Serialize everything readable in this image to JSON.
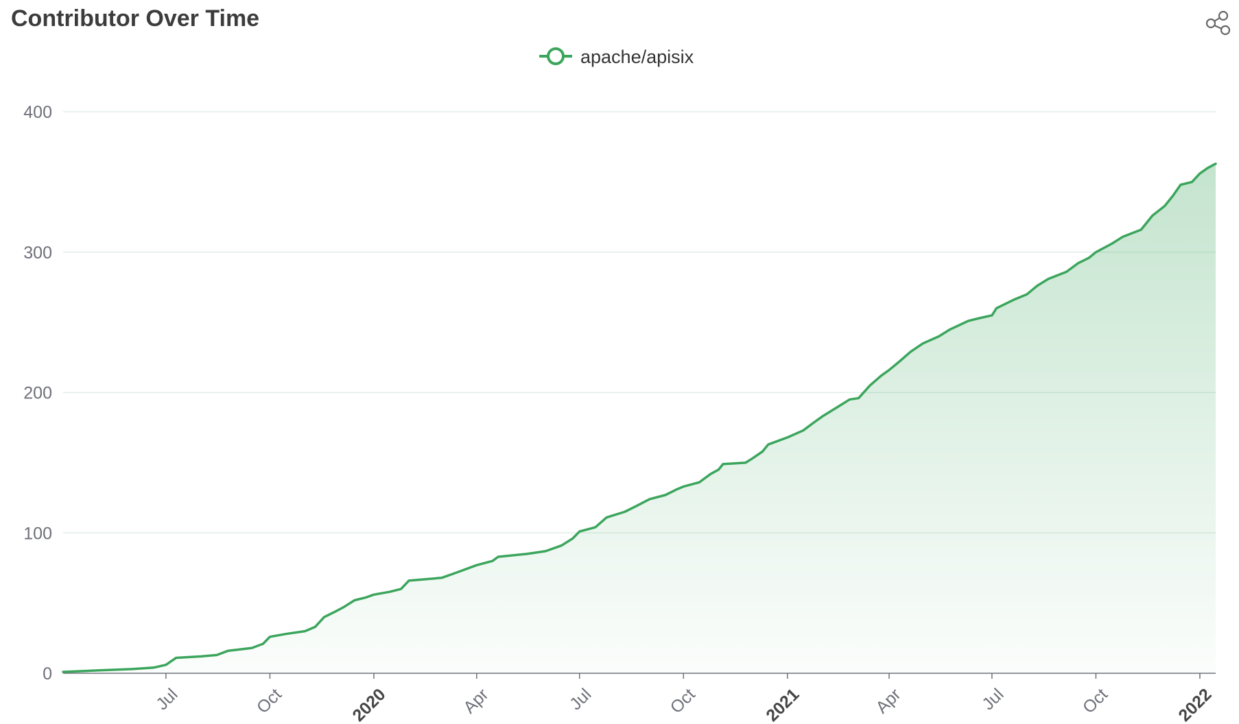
{
  "title": "Contributor Over Time",
  "toolbar": {
    "share_icon": "share-icon"
  },
  "colors": {
    "series": "#3ba55c",
    "grid": "#dfeee9",
    "axis": "#6e7079"
  },
  "chart_data": {
    "type": "area",
    "title": "Contributor Over Time",
    "xlabel": "",
    "ylabel": "",
    "legend_position": "top-center",
    "grid": true,
    "ylim": [
      0,
      400
    ],
    "xlim": [
      "2019-04-01",
      "2022-01-15"
    ],
    "yticks": [
      0,
      100,
      200,
      300,
      400
    ],
    "xticks": [
      {
        "date": "2019-07-01",
        "label": "Jul"
      },
      {
        "date": "2019-10-01",
        "label": "Oct"
      },
      {
        "date": "2020-01-01",
        "label": "2020"
      },
      {
        "date": "2020-04-01",
        "label": "Apr"
      },
      {
        "date": "2020-07-01",
        "label": "Jul"
      },
      {
        "date": "2020-10-01",
        "label": "Oct"
      },
      {
        "date": "2021-01-01",
        "label": "2021"
      },
      {
        "date": "2021-04-01",
        "label": "Apr"
      },
      {
        "date": "2021-07-01",
        "label": "Jul"
      },
      {
        "date": "2021-10-01",
        "label": "Oct"
      },
      {
        "date": "2022-01-01",
        "label": "2022"
      }
    ],
    "series": [
      {
        "name": "apache/apisix",
        "points": [
          [
            "2019-04-01",
            1
          ],
          [
            "2019-05-01",
            2
          ],
          [
            "2019-06-01",
            3
          ],
          [
            "2019-06-20",
            4
          ],
          [
            "2019-07-01",
            6
          ],
          [
            "2019-07-10",
            11
          ],
          [
            "2019-08-01",
            12
          ],
          [
            "2019-08-15",
            13
          ],
          [
            "2019-08-25",
            16
          ],
          [
            "2019-09-15",
            18
          ],
          [
            "2019-09-25",
            21
          ],
          [
            "2019-10-01",
            26
          ],
          [
            "2019-10-15",
            28
          ],
          [
            "2019-11-01",
            30
          ],
          [
            "2019-11-10",
            33
          ],
          [
            "2019-11-18",
            40
          ],
          [
            "2019-11-28",
            44
          ],
          [
            "2019-12-05",
            47
          ],
          [
            "2019-12-15",
            52
          ],
          [
            "2019-12-25",
            54
          ],
          [
            "2020-01-01",
            56
          ],
          [
            "2020-01-15",
            58
          ],
          [
            "2020-01-25",
            60
          ],
          [
            "2020-02-01",
            66
          ],
          [
            "2020-03-01",
            68
          ],
          [
            "2020-03-15",
            72
          ],
          [
            "2020-04-01",
            77
          ],
          [
            "2020-04-15",
            80
          ],
          [
            "2020-04-20",
            83
          ],
          [
            "2020-05-15",
            85
          ],
          [
            "2020-06-01",
            87
          ],
          [
            "2020-06-15",
            91
          ],
          [
            "2020-06-25",
            96
          ],
          [
            "2020-07-01",
            101
          ],
          [
            "2020-07-15",
            104
          ],
          [
            "2020-07-25",
            111
          ],
          [
            "2020-08-10",
            115
          ],
          [
            "2020-08-20",
            119
          ],
          [
            "2020-09-01",
            124
          ],
          [
            "2020-09-15",
            127
          ],
          [
            "2020-09-25",
            131
          ],
          [
            "2020-10-01",
            133
          ],
          [
            "2020-10-15",
            136
          ],
          [
            "2020-10-25",
            142
          ],
          [
            "2020-11-01",
            145
          ],
          [
            "2020-11-05",
            149
          ],
          [
            "2020-11-25",
            150
          ],
          [
            "2020-12-01",
            153
          ],
          [
            "2020-12-10",
            158
          ],
          [
            "2020-12-15",
            163
          ],
          [
            "2021-01-01",
            168
          ],
          [
            "2021-01-15",
            173
          ],
          [
            "2021-01-25",
            179
          ],
          [
            "2021-02-01",
            183
          ],
          [
            "2021-02-15",
            190
          ],
          [
            "2021-02-25",
            195
          ],
          [
            "2021-03-05",
            196
          ],
          [
            "2021-03-15",
            205
          ],
          [
            "2021-03-25",
            212
          ],
          [
            "2021-04-01",
            216
          ],
          [
            "2021-04-10",
            222
          ],
          [
            "2021-04-20",
            229
          ],
          [
            "2021-05-01",
            235
          ],
          [
            "2021-05-15",
            240
          ],
          [
            "2021-05-25",
            245
          ],
          [
            "2021-06-10",
            251
          ],
          [
            "2021-06-20",
            253
          ],
          [
            "2021-07-01",
            255
          ],
          [
            "2021-07-05",
            260
          ],
          [
            "2021-07-20",
            266
          ],
          [
            "2021-08-01",
            270
          ],
          [
            "2021-08-10",
            276
          ],
          [
            "2021-08-20",
            281
          ],
          [
            "2021-09-05",
            286
          ],
          [
            "2021-09-15",
            292
          ],
          [
            "2021-09-25",
            296
          ],
          [
            "2021-10-01",
            300
          ],
          [
            "2021-10-15",
            306
          ],
          [
            "2021-10-25",
            311
          ],
          [
            "2021-11-10",
            316
          ],
          [
            "2021-11-20",
            326
          ],
          [
            "2021-12-01",
            333
          ],
          [
            "2021-12-08",
            340
          ],
          [
            "2021-12-15",
            348
          ],
          [
            "2021-12-25",
            350
          ],
          [
            "2022-01-01",
            356
          ],
          [
            "2022-01-08",
            360
          ],
          [
            "2022-01-15",
            363
          ]
        ]
      }
    ]
  }
}
